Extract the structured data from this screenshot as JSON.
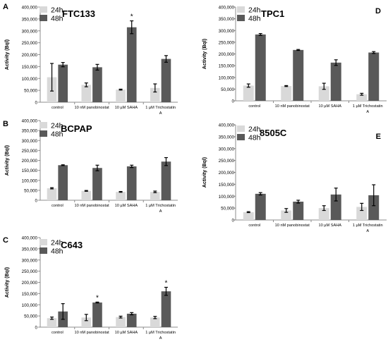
{
  "legend_labels": [
    "24h",
    "48h"
  ],
  "colors": {
    "h24": "#d9d9d9",
    "h48": "#595959",
    "axis": "#8c8c8c",
    "text": "#000000"
  },
  "chart_data": [
    {
      "panel": "A",
      "title": "FTC133",
      "type": "bar",
      "categories": [
        "control",
        "10 nM panobinostat",
        "10 µM SAHA",
        "1 µM Trichostatin A"
      ],
      "ylabel": "Activity (Bql)",
      "ylim": [
        0,
        400000
      ],
      "yticks": [
        "0",
        "50,000",
        "100,000",
        "150,000",
        "200,000",
        "250,000",
        "300,000",
        "350,000",
        "400,000"
      ],
      "series": [
        {
          "name": "24h",
          "values": [
            105000,
            73000,
            53000,
            60000
          ],
          "errors": [
            58000,
            8000,
            2000,
            17000
          ]
        },
        {
          "name": "48h",
          "values": [
            158000,
            147000,
            315000,
            182000
          ],
          "errors": [
            9000,
            12000,
            27000,
            14000
          ]
        }
      ],
      "significance": [
        {
          "category": 2,
          "series": 1,
          "mark": "*"
        }
      ]
    },
    {
      "panel": "B",
      "title": "BCPAP",
      "type": "bar",
      "categories": [
        "control",
        "10 nM panobinostat",
        "10 µM SAHA",
        "1 µM Trichostatin A"
      ],
      "ylabel": "Activity (Bql)",
      "ylim": [
        0,
        400000
      ],
      "yticks": [
        "0",
        "50,000",
        "100,000",
        "150,000",
        "200,000",
        "250,000",
        "300,000",
        "350,000",
        "400,000"
      ],
      "series": [
        {
          "name": "24h",
          "values": [
            60000,
            47000,
            42000,
            42000
          ],
          "errors": [
            3000,
            2000,
            2000,
            4000
          ]
        },
        {
          "name": "48h",
          "values": [
            176000,
            162000,
            170000,
            194000
          ],
          "errors": [
            2000,
            14000,
            6000,
            20000
          ]
        }
      ],
      "significance": []
    },
    {
      "panel": "C",
      "title": "C643",
      "type": "bar",
      "categories": [
        "control",
        "10 nM panobinostat",
        "10 µM SAHA",
        "1 µM Trichostatin A"
      ],
      "ylabel": "Activity (Bql)",
      "ylim": [
        0,
        400000
      ],
      "yticks": [
        "0",
        "50,000",
        "100,000",
        "150,000",
        "200,000",
        "250,000",
        "300,000",
        "350,000",
        "400,000"
      ],
      "series": [
        {
          "name": "24h",
          "values": [
            40000,
            43000,
            45000,
            43000
          ],
          "errors": [
            5000,
            14000,
            4000,
            5000
          ]
        },
        {
          "name": "48h",
          "values": [
            70000,
            110000,
            60000,
            160000
          ],
          "errors": [
            35000,
            2000,
            5000,
            18000
          ]
        }
      ],
      "significance": [
        {
          "category": 1,
          "series": 1,
          "mark": "*"
        },
        {
          "category": 3,
          "series": 1,
          "mark": "*"
        }
      ]
    },
    {
      "panel": "D",
      "title": "TPC1",
      "type": "bar",
      "categories": [
        "control",
        "10 nM panobinostat",
        "10 µM SAHA",
        "1 µM Trichostatin A"
      ],
      "ylabel": "Activity (Bql)",
      "ylim": [
        0,
        400000
      ],
      "yticks": [
        "0",
        "50,000",
        "100,000",
        "150,000",
        "200,000",
        "250,000",
        "300,000",
        "350,000",
        "400,000"
      ],
      "series": [
        {
          "name": "24h",
          "values": [
            65000,
            63000,
            62000,
            28000
          ],
          "errors": [
            7000,
            2000,
            13000,
            4000
          ]
        },
        {
          "name": "48h",
          "values": [
            283000,
            217000,
            163000,
            206000
          ],
          "errors": [
            4000,
            2000,
            12000,
            4000
          ]
        }
      ],
      "significance": []
    },
    {
      "panel": "E",
      "title": "8505C",
      "type": "bar",
      "categories": [
        "control",
        "10 nM panobinostat",
        "10 µM SAHA",
        "1 µM Trichostatin A"
      ],
      "ylabel": "Activity (Bql)",
      "ylim": [
        0,
        400000
      ],
      "yticks": [
        "0",
        "50,000",
        "100,000",
        "150,000",
        "200,000",
        "250,000",
        "300,000",
        "350,000",
        "400,000"
      ],
      "series": [
        {
          "name": "24h",
          "values": [
            33000,
            40000,
            50000,
            55000
          ],
          "errors": [
            2000,
            8000,
            10000,
            15000
          ]
        },
        {
          "name": "48h",
          "values": [
            110000,
            77000,
            107000,
            104000
          ],
          "errors": [
            5000,
            6000,
            27000,
            44000
          ]
        }
      ],
      "significance": []
    }
  ]
}
